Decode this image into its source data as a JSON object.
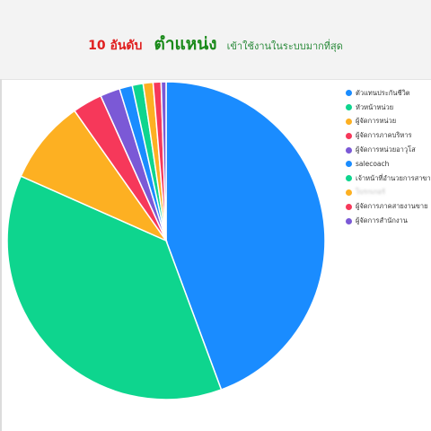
{
  "header": {
    "title_part1": "10 อันดับ",
    "title_part2": "ตำแหน่ง",
    "title_part3": "เข้าใช้งานในระบบมากที่สุด"
  },
  "colors": {
    "title_red": "#e02020",
    "title_green": "#1a8a1a"
  },
  "chart_data": {
    "type": "pie",
    "legend_position": "right",
    "slices": [
      {
        "label": "ตัวแทนประกันชีวิต",
        "value": 44.0,
        "color": "#1a8cff"
      },
      {
        "label": "หัวหน้าหน่วย",
        "value": 37.0,
        "color": "#0ed58e"
      },
      {
        "label": "ผู้จัดการหน่วย",
        "value": 8.5,
        "color": "#fdb022"
      },
      {
        "label": "ผู้จัดการภาคบริหาร",
        "value": 3.0,
        "color": "#f6385a"
      },
      {
        "label": "ผู้จัดการหน่วยอาวุโส",
        "value": 2.0,
        "color": "#7b59d6"
      },
      {
        "label": "salecoach",
        "value": 1.3,
        "color": "#1a8cff"
      },
      {
        "label": "เจ้าหน้าที่อำนวยการสาขา",
        "value": 1.1,
        "color": "#0ed58e"
      },
      {
        "label": "โบรกเกอร์",
        "value": 1.0,
        "color": "#fdb022"
      },
      {
        "label": "ผู้จัดการภาคสายงานขาย",
        "value": 0.8,
        "color": "#f6385a"
      },
      {
        "label": "ผู้จัดการสำนักงาน",
        "value": 0.5,
        "color": "#7b59d6"
      }
    ]
  }
}
